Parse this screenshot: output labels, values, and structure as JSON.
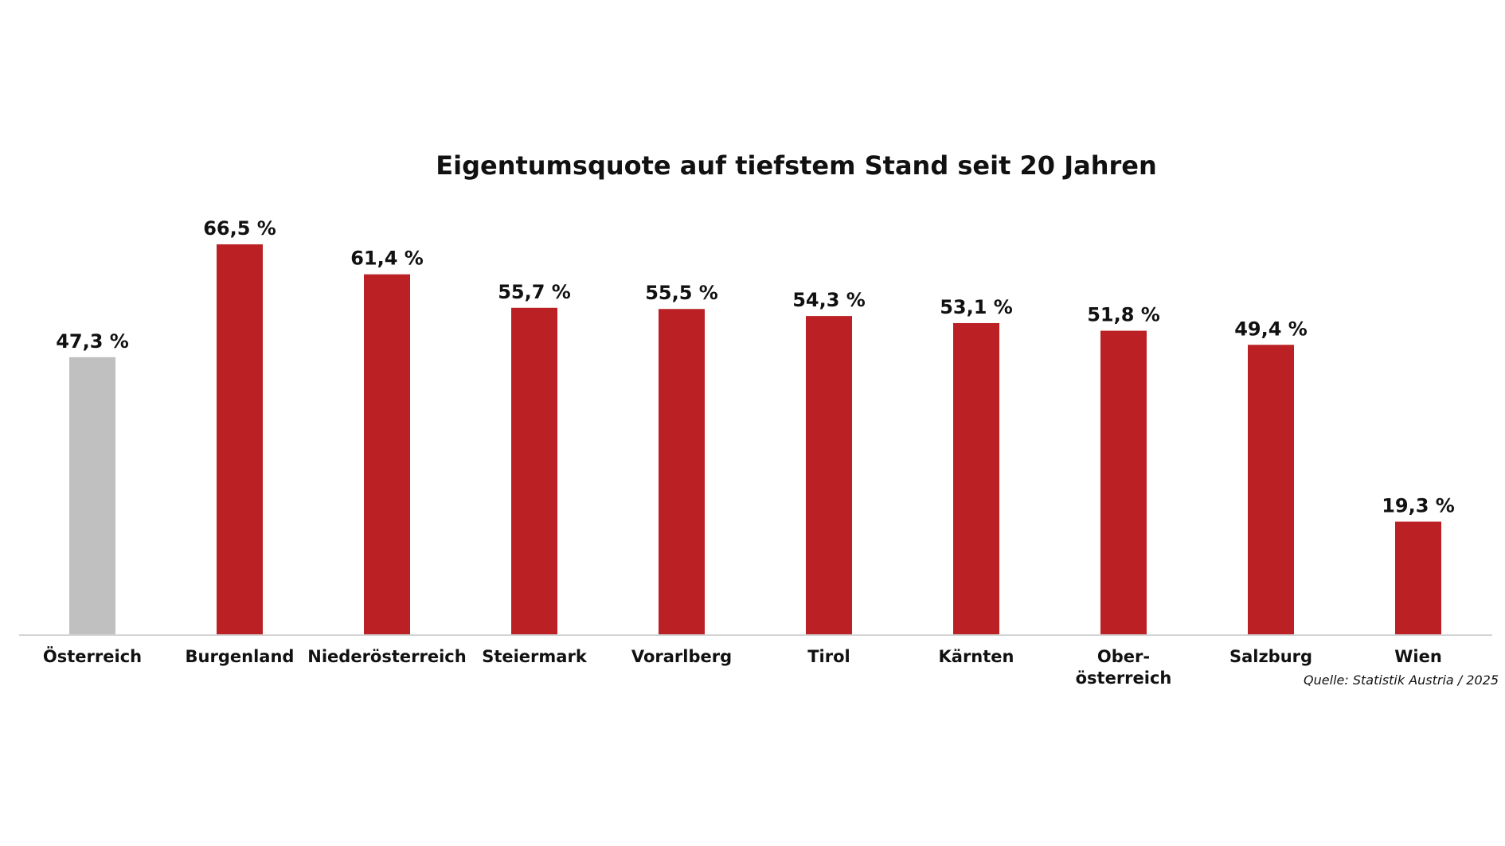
{
  "chart_data": {
    "type": "bar",
    "title": "Eigentumsquote auf tiefstem Stand seit 20 Jahren",
    "categories": [
      [
        "Österreich"
      ],
      [
        "Burgenland"
      ],
      [
        "Niederösterreich"
      ],
      [
        "Steiermark"
      ],
      [
        "Vorarlberg"
      ],
      [
        "Tirol"
      ],
      [
        "Kärnten"
      ],
      [
        "Ober-",
        "österreich"
      ],
      [
        "Salzburg"
      ],
      [
        "Wien"
      ]
    ],
    "values": [
      47.3,
      66.5,
      61.4,
      55.7,
      55.5,
      54.3,
      53.1,
      51.8,
      49.4,
      19.3
    ],
    "value_labels": [
      "47,3 %",
      "66,5 %",
      "61,4 %",
      "55,7 %",
      "55,5 %",
      "54,3 %",
      "53,1 %",
      "51,8 %",
      "49,4 %",
      "19,3 %"
    ],
    "ylim": [
      0,
      100
    ],
    "grid": false,
    "colors": {
      "highlight": "#c0c0c0",
      "default": "#bb2124",
      "axis": "#d4d4d4",
      "text": "#111111"
    },
    "highlight_index": 0,
    "source": "Quelle: Statistik Austria / 2025"
  }
}
